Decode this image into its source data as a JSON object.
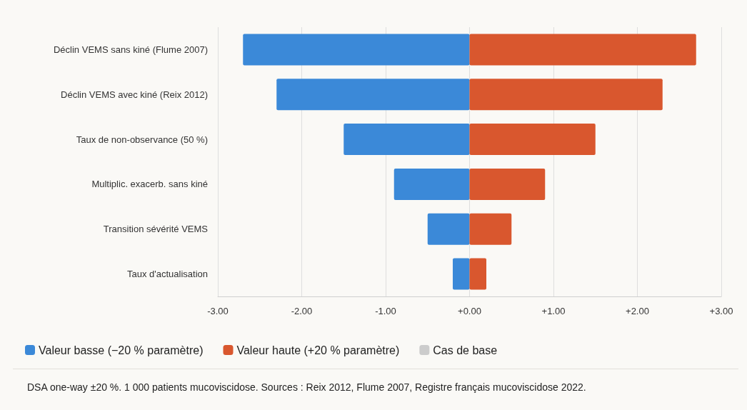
{
  "chart_data": {
    "type": "bar",
    "orientation": "horizontal",
    "stacked": true,
    "categories": [
      "Déclin VEMS sans kiné (Flume 2007)",
      "Déclin VEMS avec kiné (Reix 2012)",
      "Taux de non-observance (50 %)",
      "Multiplic. exacerb. sans kiné",
      "Transition sévérité VEMS",
      "Taux d'actualisation"
    ],
    "series": [
      {
        "name": "Valeur basse (−20 % paramètre)",
        "color": "#3b89d8",
        "values": [
          -2.7,
          -2.3,
          -1.5,
          -0.9,
          -0.5,
          -0.2
        ]
      },
      {
        "name": "Valeur haute (+20 % paramètre)",
        "color": "#d9572e",
        "values": [
          2.7,
          2.3,
          1.5,
          0.9,
          0.5,
          0.2
        ]
      },
      {
        "name": "Cas de base",
        "color": "#cccccc",
        "values": [
          null,
          null,
          null,
          null,
          null,
          null
        ]
      }
    ],
    "xlim": [
      -3,
      3
    ],
    "xticks": [
      {
        "value": -3,
        "label": "-3.00"
      },
      {
        "value": -2,
        "label": "-2.00"
      },
      {
        "value": -1,
        "label": "-1.00"
      },
      {
        "value": 0,
        "label": "+0.00"
      },
      {
        "value": 1,
        "label": "+1.00"
      },
      {
        "value": 2,
        "label": "+2.00"
      },
      {
        "value": 3,
        "label": "+3.00"
      }
    ],
    "grid": "x",
    "legend": "bottom left",
    "annotations": [
      "DSA one-way ±20 %. 1 000 patients mucoviscidose. Sources : Reix 2012, Flume 2007, Registre français mucoviscidose 2022."
    ]
  }
}
